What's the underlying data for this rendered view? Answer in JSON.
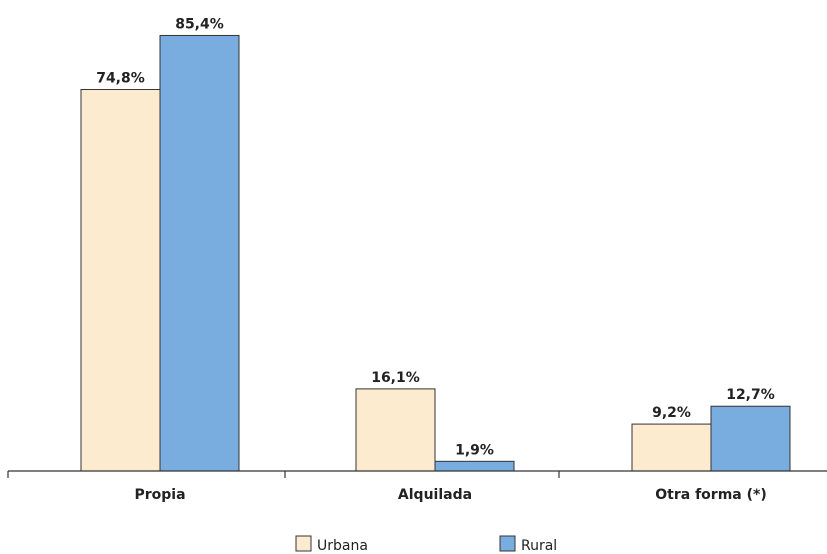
{
  "chart_data": {
    "type": "bar",
    "categories": [
      "Propia",
      "Alquilada",
      "Otra forma (*)"
    ],
    "series": [
      {
        "name": "Urbana",
        "values": [
          74.8,
          16.1,
          9.2
        ],
        "labels": [
          "74,8%",
          "16,1%",
          "9,2%"
        ],
        "color": "#FDEBD0"
      },
      {
        "name": "Rural",
        "values": [
          85.4,
          1.9,
          12.7
        ],
        "labels": [
          "85,4%",
          "1,9%",
          "12,7%"
        ],
        "color": "#7AADDF"
      }
    ],
    "ylim": [
      0,
      100
    ],
    "grid": false,
    "legend_position": "bottom-center",
    "bar_outline_color": "#333333",
    "axis_color": "#333333"
  }
}
